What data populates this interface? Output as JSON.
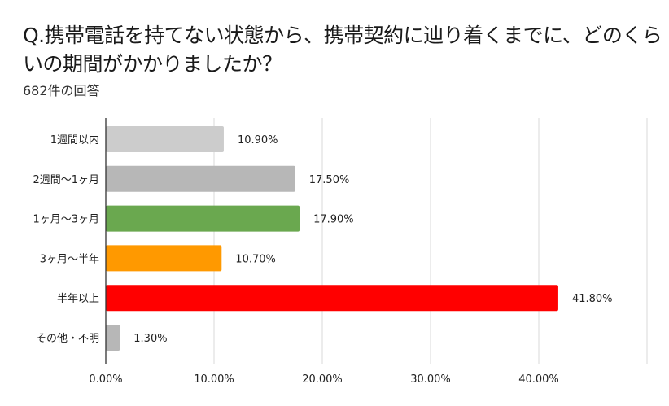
{
  "chart_data": {
    "type": "bar",
    "orientation": "horizontal",
    "title": "Q.携帯電話を持てない状態から、携帯契約に辿り着くまでに、どのくらいの期間がかかりましたか？",
    "subtitle": "682件の回答",
    "categories": [
      "1週間以内",
      "2週間〜1ヶ月",
      "1ヶ月〜3ヶ月",
      "3ヶ月〜半年",
      "半年以上",
      "その他・不明"
    ],
    "values": [
      10.9,
      17.5,
      17.9,
      10.7,
      41.8,
      1.3
    ],
    "data_labels": [
      "10.90%",
      "17.50%",
      "17.90%",
      "10.70%",
      "41.80%",
      "1.30%"
    ],
    "colors": [
      "#cccccc",
      "#b7b7b7",
      "#6aa84f",
      "#ff9900",
      "#ff0000",
      "#b7b7b7"
    ],
    "xlim": [
      0,
      50
    ],
    "xticks": [
      0,
      10,
      20,
      30,
      40
    ],
    "xtick_labels": [
      "0.00%",
      "10.00%",
      "20.00%",
      "30.00%",
      "40.00%"
    ],
    "grid": true,
    "xlabel": "",
    "ylabel": ""
  }
}
